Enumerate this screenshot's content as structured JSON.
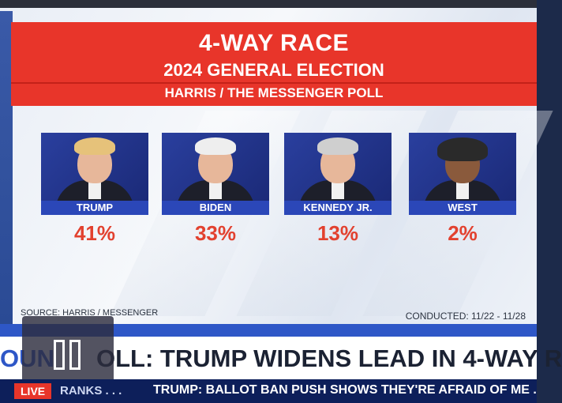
{
  "graphic": {
    "title": "4-WAY RACE",
    "subtitle": "2024 GENERAL ELECTION",
    "poll": "HARRIS / THE MESSENGER POLL",
    "source": "SOURCE: HARRIS / MESSENGER",
    "conducted": "CONDUCTED: 11/22 - 11/28",
    "candidates": [
      {
        "name": "TRUMP",
        "pct": "41%"
      },
      {
        "name": "BIDEN",
        "pct": "33%"
      },
      {
        "name": "KENNEDY JR.",
        "pct": "13%"
      },
      {
        "name": "WEST",
        "pct": "2%"
      }
    ]
  },
  "lower_third": {
    "prefix": "OUN",
    "headline": "OLL: TRUMP WIDENS LEAD IN 4-WAY R"
  },
  "ticker": {
    "live": "LIVE",
    "item": "RANKS . . .",
    "headline": "TRUMP: BALLOT BAN PUSH SHOWS THEY'RE AFRAID OF ME ."
  },
  "colors": {
    "accent_red": "#e8352a",
    "name_bar_blue": "#2b47b8",
    "pct_red": "#e2412f",
    "ticker_navy": "#0d1f5a"
  }
}
